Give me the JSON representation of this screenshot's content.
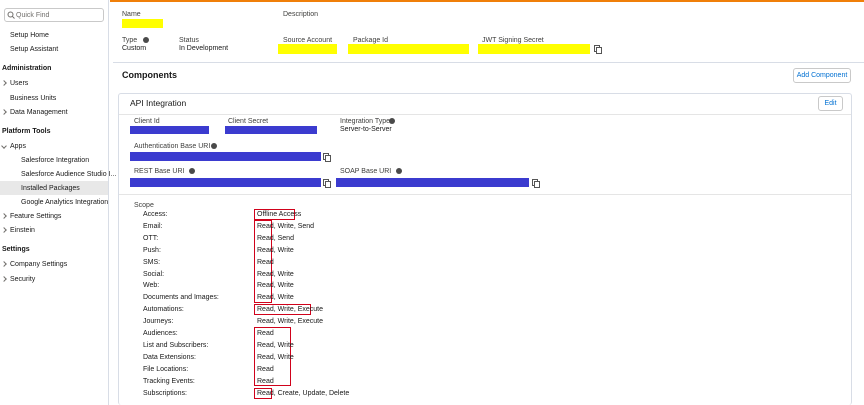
{
  "sidebar": {
    "search_placeholder": "Quick Find",
    "items": [
      "Setup Home",
      "Setup Assistant",
      "Administration",
      "Users",
      "Business Units",
      "Data Management",
      "Platform Tools",
      "Apps",
      "Salesforce Integration",
      "Salesforce Audience Studio I...",
      "Installed Packages",
      "Google Analytics Integration",
      "Feature Settings",
      "Einstein",
      "Settings",
      "Company Settings",
      "Security"
    ]
  },
  "header": {
    "name_label": "Name",
    "description_label": "Description",
    "type_label": "Type",
    "type_value": "Custom",
    "status_label": "Status",
    "status_value": "In Development",
    "source_account_label": "Source Account",
    "package_id_label": "Package Id",
    "jwt_label": "JWT Signing Secret"
  },
  "components": {
    "title": "Components",
    "add_button": "Add Component"
  },
  "api_integration": {
    "title": "API Integration",
    "edit_button": "Edit",
    "client_id_label": "Client Id",
    "client_secret_label": "Client Secret",
    "integration_type_label": "Integration Type",
    "integration_type_value": "Server-to-Server",
    "auth_uri_label": "Authentication Base URI",
    "rest_uri_label": "REST Base URI",
    "soap_uri_label": "SOAP Base URI"
  },
  "scope": {
    "title": "Scope",
    "rows": [
      [
        "Access:",
        "Offline Access"
      ],
      [
        "Email:",
        "Read, Write, Send"
      ],
      [
        "OTT:",
        "Read, Send"
      ],
      [
        "Push:",
        "Read, Write"
      ],
      [
        "SMS:",
        "Read"
      ],
      [
        "Social:",
        "Read, Write"
      ],
      [
        "Web:",
        "Read, Write"
      ],
      [
        "Documents and Images:",
        "Read, Write"
      ],
      [
        "Automations:",
        "Read, Write, Execute"
      ],
      [
        "Journeys:",
        "Read, Write, Execute"
      ],
      [
        "Audiences:",
        "Read"
      ],
      [
        "List and Subscribers:",
        "Read, Write"
      ],
      [
        "Data Extensions:",
        "Read, Write"
      ],
      [
        "File Locations:",
        "Read"
      ],
      [
        "Tracking Events:",
        "Read"
      ],
      [
        "Subscriptions:",
        "Read, Create, Update, Delete"
      ]
    ]
  }
}
